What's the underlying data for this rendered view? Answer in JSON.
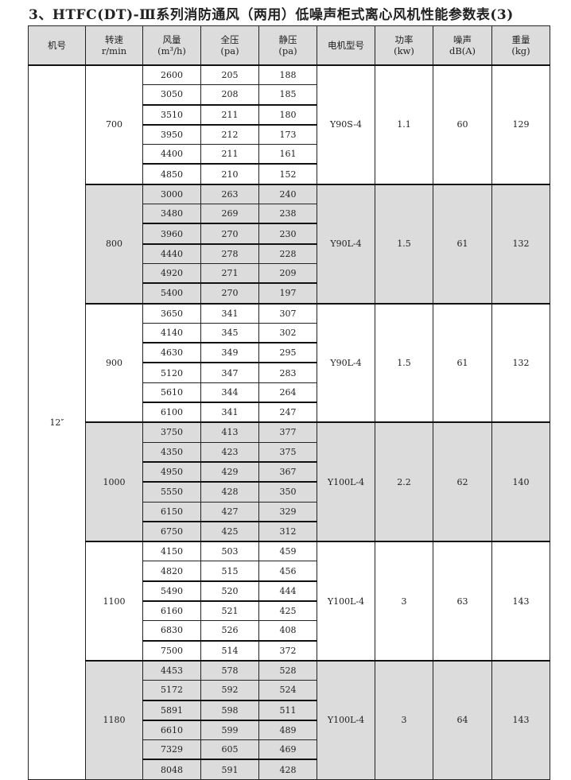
{
  "title": "3、HTFC(DT)-Ⅲ系列消防通风（两用）低噪声柜式离心风机性能参数表(3)",
  "headers": [
    [
      "机号",
      ""
    ],
    [
      "转速",
      "r/min"
    ],
    [
      "风量",
      "(m³/h)"
    ],
    [
      "全压",
      "(pa)"
    ],
    [
      "静压",
      "(pa)"
    ],
    [
      "电机型号",
      ""
    ],
    [
      "功率",
      "(kw)"
    ],
    [
      "噪声",
      "dB(A)"
    ],
    [
      "重量",
      "(kg)"
    ]
  ],
  "machine_no": "12″",
  "groups": [
    {
      "speed": "700",
      "motor": "Y90S-4",
      "power": "1.1",
      "noise": "60",
      "weight": "129",
      "shaded": false,
      "rows": [
        [
          "2600",
          "205",
          "188"
        ],
        [
          "3050",
          "208",
          "185"
        ],
        [
          "3510",
          "211",
          "180"
        ],
        [
          "3950",
          "212",
          "173"
        ],
        [
          "4400",
          "211",
          "161"
        ],
        [
          "4850",
          "210",
          "152"
        ]
      ]
    },
    {
      "speed": "800",
      "motor": "Y90L-4",
      "power": "1.5",
      "noise": "61",
      "weight": "132",
      "shaded": true,
      "rows": [
        [
          "3000",
          "263",
          "240"
        ],
        [
          "3480",
          "269",
          "238"
        ],
        [
          "3960",
          "270",
          "230"
        ],
        [
          "4440",
          "278",
          "228"
        ],
        [
          "4920",
          "271",
          "209"
        ],
        [
          "5400",
          "270",
          "197"
        ]
      ]
    },
    {
      "speed": "900",
      "motor": "Y90L-4",
      "power": "1.5",
      "noise": "61",
      "weight": "132",
      "shaded": false,
      "rows": [
        [
          "3650",
          "341",
          "307"
        ],
        [
          "4140",
          "345",
          "302"
        ],
        [
          "4630",
          "349",
          "295"
        ],
        [
          "5120",
          "347",
          "283"
        ],
        [
          "5610",
          "344",
          "264"
        ],
        [
          "6100",
          "341",
          "247"
        ]
      ]
    },
    {
      "speed": "1000",
      "motor": "Y100L-4",
      "power": "2.2",
      "noise": "62",
      "weight": "140",
      "shaded": true,
      "rows": [
        [
          "3750",
          "413",
          "377"
        ],
        [
          "4350",
          "423",
          "375"
        ],
        [
          "4950",
          "429",
          "367"
        ],
        [
          "5550",
          "428",
          "350"
        ],
        [
          "6150",
          "427",
          "329"
        ],
        [
          "6750",
          "425",
          "312"
        ]
      ]
    },
    {
      "speed": "1100",
      "motor": "Y100L-4",
      "power": "3",
      "noise": "63",
      "weight": "143",
      "shaded": false,
      "rows": [
        [
          "4150",
          "503",
          "459"
        ],
        [
          "4820",
          "515",
          "456"
        ],
        [
          "5490",
          "520",
          "444"
        ],
        [
          "6160",
          "521",
          "425"
        ],
        [
          "6830",
          "526",
          "408"
        ],
        [
          "7500",
          "514",
          "372"
        ]
      ]
    },
    {
      "speed": "1180",
      "motor": "Y100L-4",
      "power": "3",
      "noise": "64",
      "weight": "143",
      "shaded": true,
      "rows": [
        [
          "4453",
          "578",
          "528"
        ],
        [
          "5172",
          "592",
          "524"
        ],
        [
          "5891",
          "598",
          "511"
        ],
        [
          "6610",
          "599",
          "489"
        ],
        [
          "7329",
          "605",
          "469"
        ],
        [
          "8048",
          "591",
          "428"
        ]
      ]
    }
  ]
}
